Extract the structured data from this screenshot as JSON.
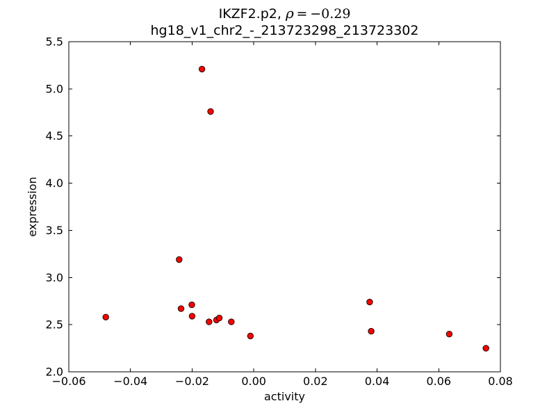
{
  "figure": {
    "title_prefix": "IKZF2.p2, ",
    "title_math_symbol": "ρ",
    "title_math_value": " = −0.29",
    "subtitle": "hg18_v1_chr2_-_213723298_213723302"
  },
  "chart_data": {
    "type": "scatter",
    "title": "IKZF2.p2, ρ = −0.29",
    "subtitle": "hg18_v1_chr2_-_213723298_213723302",
    "xlabel": "activity",
    "ylabel": "expression",
    "xlim": [
      -0.06,
      0.08
    ],
    "ylim": [
      2.0,
      5.5
    ],
    "xtick_values": [
      -0.06,
      -0.04,
      -0.02,
      0.0,
      0.02,
      0.04,
      0.06,
      0.08
    ],
    "xtick_labels": [
      "−0.06",
      "−0.04",
      "−0.02",
      "0.00",
      "0.02",
      "0.04",
      "0.06",
      "0.08"
    ],
    "ytick_values": [
      2.0,
      2.5,
      3.0,
      3.5,
      4.0,
      4.5,
      5.0,
      5.5
    ],
    "ytick_labels": [
      "2.0",
      "2.5",
      "3.0",
      "3.5",
      "4.0",
      "4.5",
      "5.0",
      "5.5"
    ],
    "grid": false,
    "legend": null,
    "marker": {
      "shape": "circle",
      "fill_color": "#ff0000",
      "edge_color": "#200000",
      "radius_px": 4.2
    },
    "frame_color": "#000000",
    "correlation_rho": -0.29,
    "points": [
      {
        "x": -0.048,
        "y": 2.58
      },
      {
        "x": -0.0242,
        "y": 3.19
      },
      {
        "x": -0.0236,
        "y": 2.67
      },
      {
        "x": -0.0201,
        "y": 2.71
      },
      {
        "x": -0.02,
        "y": 2.59
      },
      {
        "x": -0.0168,
        "y": 5.21
      },
      {
        "x": -0.0145,
        "y": 2.53
      },
      {
        "x": -0.014,
        "y": 4.76
      },
      {
        "x": -0.0121,
        "y": 2.55
      },
      {
        "x": -0.0112,
        "y": 2.57
      },
      {
        "x": -0.0073,
        "y": 2.53
      },
      {
        "x": -0.0011,
        "y": 2.38
      },
      {
        "x": 0.0376,
        "y": 2.74
      },
      {
        "x": 0.0381,
        "y": 2.43
      },
      {
        "x": 0.0634,
        "y": 2.4
      },
      {
        "x": 0.0753,
        "y": 2.25
      }
    ]
  }
}
